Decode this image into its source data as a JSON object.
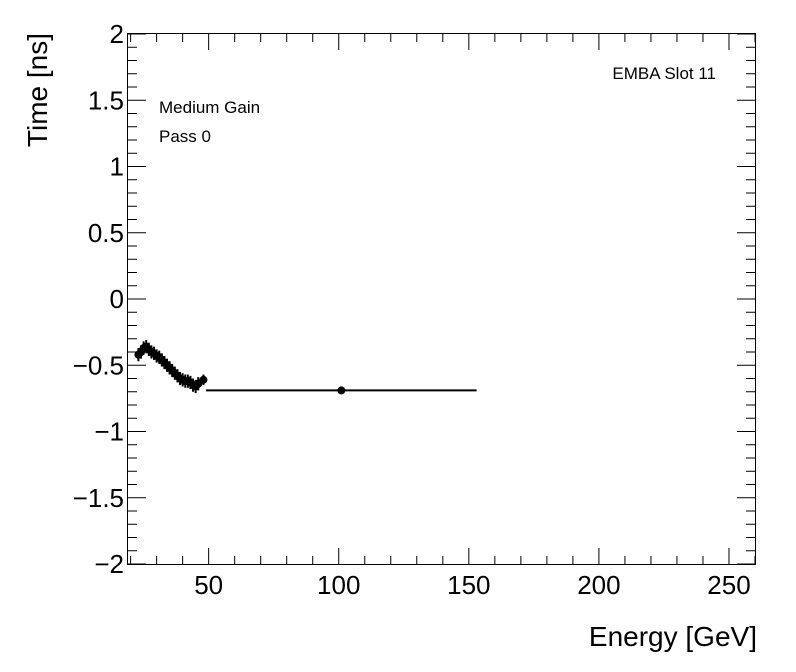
{
  "chart_data": {
    "type": "scatter",
    "title": "",
    "xlabel": "Energy [GeV]",
    "ylabel": "Time [ns]",
    "xlim": [
      19,
      260
    ],
    "ylim": [
      -2,
      2
    ],
    "grid": false,
    "x_ticks": [
      50,
      100,
      150,
      200,
      250
    ],
    "x_tick_labels": [
      "50",
      "100",
      "150",
      "200",
      "250"
    ],
    "y_ticks": [
      -2,
      -1.5,
      -1,
      -0.5,
      0,
      0.5,
      1,
      1.5,
      2
    ],
    "y_tick_labels": [
      "−2",
      "−1.5",
      "−1",
      "−0.5",
      "0",
      "0.5",
      "1",
      "1.5",
      "2"
    ],
    "annotations": {
      "top_right": "EMBA Slot 11",
      "line1": "Medium Gain",
      "line2": "Pass 0"
    },
    "points": [
      {
        "x": 23,
        "y": -0.42,
        "yerr": 0.05,
        "xerr": 0
      },
      {
        "x": 24,
        "y": -0.4,
        "yerr": 0.05,
        "xerr": 0
      },
      {
        "x": 25,
        "y": -0.37,
        "yerr": 0.05,
        "xerr": 0
      },
      {
        "x": 26,
        "y": -0.36,
        "yerr": 0.05,
        "xerr": 0
      },
      {
        "x": 27,
        "y": -0.38,
        "yerr": 0.05,
        "xerr": 0
      },
      {
        "x": 28,
        "y": -0.4,
        "yerr": 0.05,
        "xerr": 0
      },
      {
        "x": 29,
        "y": -0.41,
        "yerr": 0.05,
        "xerr": 0
      },
      {
        "x": 30,
        "y": -0.43,
        "yerr": 0.05,
        "xerr": 0
      },
      {
        "x": 31,
        "y": -0.44,
        "yerr": 0.05,
        "xerr": 0
      },
      {
        "x": 32,
        "y": -0.46,
        "yerr": 0.05,
        "xerr": 0
      },
      {
        "x": 33,
        "y": -0.48,
        "yerr": 0.05,
        "xerr": 0
      },
      {
        "x": 34,
        "y": -0.5,
        "yerr": 0.05,
        "xerr": 0
      },
      {
        "x": 35,
        "y": -0.52,
        "yerr": 0.05,
        "xerr": 0
      },
      {
        "x": 36,
        "y": -0.54,
        "yerr": 0.05,
        "xerr": 0
      },
      {
        "x": 37,
        "y": -0.56,
        "yerr": 0.05,
        "xerr": 0
      },
      {
        "x": 38,
        "y": -0.58,
        "yerr": 0.05,
        "xerr": 0
      },
      {
        "x": 39,
        "y": -0.6,
        "yerr": 0.05,
        "xerr": 0
      },
      {
        "x": 40,
        "y": -0.61,
        "yerr": 0.05,
        "xerr": 0
      },
      {
        "x": 41,
        "y": -0.62,
        "yerr": 0.05,
        "xerr": 0
      },
      {
        "x": 42,
        "y": -0.62,
        "yerr": 0.05,
        "xerr": 0
      },
      {
        "x": 43,
        "y": -0.63,
        "yerr": 0.05,
        "xerr": 0
      },
      {
        "x": 44,
        "y": -0.65,
        "yerr": 0.05,
        "xerr": 0
      },
      {
        "x": 45,
        "y": -0.66,
        "yerr": 0.05,
        "xerr": 0
      },
      {
        "x": 46,
        "y": -0.64,
        "yerr": 0.05,
        "xerr": 0
      },
      {
        "x": 48,
        "y": -0.61,
        "yerr": 0.04,
        "xerr": 0
      },
      {
        "x": 101,
        "y": -0.69,
        "yerr": 0.0,
        "xerr": 52
      }
    ]
  }
}
